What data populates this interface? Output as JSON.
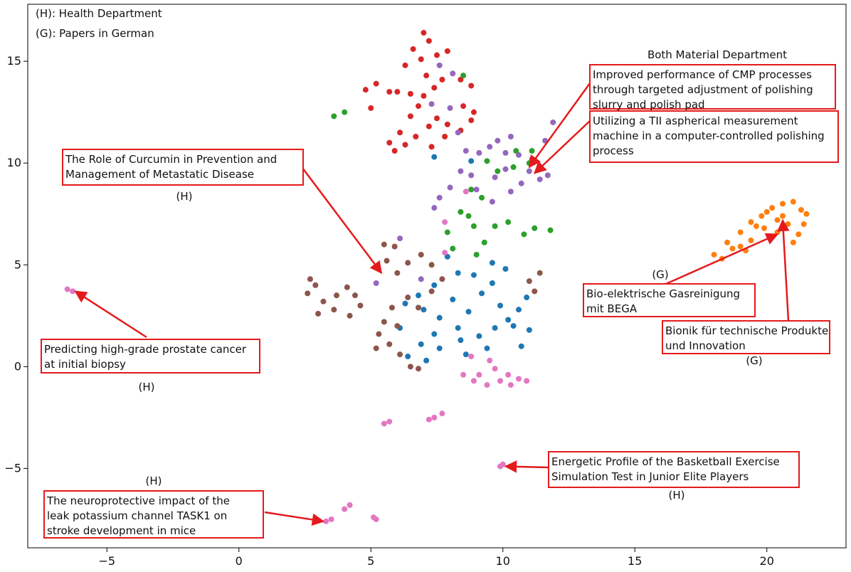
{
  "chart_data": {
    "type": "scatter",
    "title": "",
    "xlabel": "",
    "ylabel": "",
    "xlim": [
      -8,
      23
    ],
    "ylim": [
      -8.9,
      17.8
    ],
    "xticks": [
      -5,
      0,
      5,
      10,
      15,
      20
    ],
    "xtick_labels": [
      "−5",
      "0",
      "5",
      "10",
      "15",
      "20"
    ],
    "yticks": [
      -5,
      0,
      5,
      10,
      15
    ],
    "ytick_labels": [
      "−5",
      "0",
      "5",
      "10",
      "15"
    ],
    "grid": false,
    "legend_notes": [
      "(H): Health Department",
      "(G): Papers in German"
    ],
    "series": [
      {
        "color": "#d62728",
        "points": [
          [
            7.0,
            16.4
          ],
          [
            7.2,
            16.0
          ],
          [
            6.6,
            15.6
          ],
          [
            7.5,
            15.3
          ],
          [
            6.9,
            15.1
          ],
          [
            7.9,
            15.5
          ],
          [
            6.3,
            14.8
          ],
          [
            7.1,
            14.3
          ],
          [
            7.7,
            14.1
          ],
          [
            6.0,
            13.5
          ],
          [
            6.5,
            13.4
          ],
          [
            7.0,
            13.3
          ],
          [
            7.4,
            13.7
          ],
          [
            8.4,
            14.1
          ],
          [
            8.8,
            13.8
          ],
          [
            5.2,
            13.9
          ],
          [
            5.7,
            13.5
          ],
          [
            4.8,
            13.6
          ],
          [
            6.8,
            12.8
          ],
          [
            7.5,
            12.2
          ],
          [
            7.2,
            11.8
          ],
          [
            7.8,
            11.3
          ],
          [
            7.3,
            10.8
          ],
          [
            6.3,
            10.9
          ],
          [
            5.9,
            10.6
          ],
          [
            5.7,
            11.0
          ],
          [
            6.1,
            11.5
          ],
          [
            8.5,
            12.8
          ],
          [
            8.9,
            12.5
          ],
          [
            8.8,
            12.1
          ],
          [
            5.0,
            12.7
          ],
          [
            6.5,
            12.3
          ],
          [
            7.9,
            11.9
          ],
          [
            8.4,
            11.6
          ],
          [
            6.7,
            11.3
          ]
        ]
      },
      {
        "color": "#9467bd",
        "points": [
          [
            7.6,
            14.8
          ],
          [
            7.3,
            12.9
          ],
          [
            8.1,
            14.4
          ],
          [
            8.0,
            12.7
          ],
          [
            8.3,
            11.5
          ],
          [
            8.6,
            10.6
          ],
          [
            9.1,
            10.5
          ],
          [
            9.5,
            10.8
          ],
          [
            10.1,
            10.5
          ],
          [
            10.6,
            10.4
          ],
          [
            11.1,
            10.2
          ],
          [
            11.6,
            11.1
          ],
          [
            11.9,
            12.0
          ],
          [
            9.8,
            11.1
          ],
          [
            10.3,
            11.3
          ],
          [
            11.0,
            9.6
          ],
          [
            11.4,
            9.2
          ],
          [
            8.8,
            9.4
          ],
          [
            8.4,
            9.6
          ],
          [
            8.0,
            8.8
          ],
          [
            7.6,
            8.3
          ],
          [
            7.4,
            7.8
          ],
          [
            9.0,
            8.7
          ],
          [
            9.6,
            8.1
          ],
          [
            10.3,
            8.6
          ],
          [
            10.7,
            9.0
          ],
          [
            11.7,
            9.4
          ],
          [
            10.1,
            9.7
          ],
          [
            9.7,
            9.3
          ],
          [
            6.1,
            6.3
          ],
          [
            6.9,
            4.3
          ],
          [
            5.2,
            4.1
          ]
        ]
      },
      {
        "color": "#2ca02c",
        "points": [
          [
            3.6,
            12.3
          ],
          [
            4.0,
            12.5
          ],
          [
            8.5,
            14.3
          ],
          [
            9.4,
            10.1
          ],
          [
            9.8,
            9.6
          ],
          [
            10.4,
            9.8
          ],
          [
            11.0,
            10.0
          ],
          [
            11.1,
            10.6
          ],
          [
            8.8,
            8.7
          ],
          [
            9.2,
            8.3
          ],
          [
            8.4,
            7.6
          ],
          [
            8.9,
            6.9
          ],
          [
            9.3,
            6.1
          ],
          [
            9.7,
            6.9
          ],
          [
            10.2,
            7.1
          ],
          [
            11.2,
            6.8
          ],
          [
            11.8,
            6.7
          ],
          [
            10.8,
            6.5
          ],
          [
            9.0,
            5.5
          ],
          [
            8.7,
            7.4
          ],
          [
            7.9,
            6.6
          ],
          [
            8.1,
            5.8
          ],
          [
            10.5,
            10.6
          ]
        ]
      },
      {
        "color": "#1f77b4",
        "points": [
          [
            7.4,
            10.3
          ],
          [
            8.8,
            10.1
          ],
          [
            7.9,
            5.4
          ],
          [
            8.3,
            4.6
          ],
          [
            7.4,
            4.0
          ],
          [
            6.8,
            3.5
          ],
          [
            6.3,
            3.1
          ],
          [
            7.0,
            2.8
          ],
          [
            7.6,
            2.4
          ],
          [
            8.1,
            3.3
          ],
          [
            8.7,
            2.7
          ],
          [
            9.2,
            3.6
          ],
          [
            9.6,
            4.1
          ],
          [
            9.9,
            3.0
          ],
          [
            10.2,
            2.3
          ],
          [
            10.6,
            2.8
          ],
          [
            10.9,
            3.4
          ],
          [
            8.3,
            1.9
          ],
          [
            7.4,
            1.6
          ],
          [
            6.9,
            1.1
          ],
          [
            7.6,
            0.9
          ],
          [
            8.4,
            1.3
          ],
          [
            9.1,
            1.5
          ],
          [
            9.7,
            1.9
          ],
          [
            6.4,
            0.5
          ],
          [
            7.1,
            0.3
          ],
          [
            8.6,
            0.6
          ],
          [
            9.4,
            0.9
          ],
          [
            10.4,
            2.0
          ],
          [
            11.0,
            1.8
          ],
          [
            10.7,
            1.0
          ],
          [
            6.1,
            1.9
          ],
          [
            8.9,
            4.5
          ],
          [
            9.6,
            5.1
          ],
          [
            10.1,
            4.8
          ]
        ]
      },
      {
        "color": "#8c564b",
        "points": [
          [
            2.7,
            4.3
          ],
          [
            2.9,
            4.0
          ],
          [
            2.6,
            3.6
          ],
          [
            3.2,
            3.2
          ],
          [
            3.7,
            3.5
          ],
          [
            4.1,
            3.9
          ],
          [
            4.4,
            3.5
          ],
          [
            4.6,
            3.0
          ],
          [
            3.6,
            2.8
          ],
          [
            3.0,
            2.6
          ],
          [
            4.2,
            2.5
          ],
          [
            5.5,
            6.0
          ],
          [
            5.9,
            5.9
          ],
          [
            5.6,
            5.2
          ],
          [
            6.4,
            5.1
          ],
          [
            6.0,
            4.6
          ],
          [
            6.9,
            5.5
          ],
          [
            7.3,
            5.0
          ],
          [
            7.7,
            4.3
          ],
          [
            7.3,
            3.7
          ],
          [
            6.4,
            3.4
          ],
          [
            6.8,
            2.9
          ],
          [
            5.8,
            2.9
          ],
          [
            5.5,
            2.2
          ],
          [
            5.3,
            1.6
          ],
          [
            5.7,
            1.1
          ],
          [
            6.1,
            0.6
          ],
          [
            6.0,
            2.0
          ],
          [
            6.5,
            0.0
          ],
          [
            6.8,
            -0.1
          ],
          [
            11.0,
            4.2
          ],
          [
            11.4,
            4.6
          ],
          [
            11.2,
            3.7
          ],
          [
            5.2,
            0.9
          ]
        ]
      },
      {
        "color": "#ff7f0e",
        "points": [
          [
            18.0,
            5.5
          ],
          [
            18.5,
            6.1
          ],
          [
            19.0,
            6.6
          ],
          [
            19.4,
            7.1
          ],
          [
            19.8,
            7.4
          ],
          [
            20.2,
            7.8
          ],
          [
            20.6,
            8.0
          ],
          [
            21.0,
            8.1
          ],
          [
            21.3,
            7.7
          ],
          [
            21.5,
            7.5
          ],
          [
            20.4,
            7.2
          ],
          [
            19.9,
            6.8
          ],
          [
            19.4,
            6.2
          ],
          [
            19.0,
            5.9
          ],
          [
            20.8,
            7.0
          ],
          [
            21.2,
            6.5
          ],
          [
            21.0,
            6.1
          ],
          [
            20.4,
            6.6
          ],
          [
            18.7,
            5.8
          ],
          [
            19.6,
            6.9
          ],
          [
            20.0,
            7.6
          ],
          [
            21.4,
            7.0
          ],
          [
            18.3,
            5.3
          ],
          [
            19.2,
            5.7
          ],
          [
            20.6,
            7.4
          ]
        ]
      },
      {
        "color": "#e377c2",
        "points": [
          [
            -6.5,
            3.8
          ],
          [
            -6.3,
            3.7
          ],
          [
            8.6,
            8.6
          ],
          [
            7.8,
            7.1
          ],
          [
            7.8,
            5.6
          ],
          [
            8.5,
            -0.4
          ],
          [
            8.9,
            -0.7
          ],
          [
            9.4,
            -0.9
          ],
          [
            9.9,
            -0.7
          ],
          [
            10.3,
            -0.9
          ],
          [
            10.6,
            -0.6
          ],
          [
            9.1,
            -0.4
          ],
          [
            8.8,
            0.5
          ],
          [
            9.5,
            0.3
          ],
          [
            9.7,
            -0.1
          ],
          [
            10.2,
            -0.4
          ],
          [
            10.9,
            -0.7
          ],
          [
            7.7,
            -2.3
          ],
          [
            7.4,
            -2.5
          ],
          [
            7.2,
            -2.6
          ],
          [
            5.7,
            -2.7
          ],
          [
            5.5,
            -2.8
          ],
          [
            9.9,
            -4.9
          ],
          [
            10.0,
            -4.8
          ],
          [
            3.3,
            -7.6
          ],
          [
            3.5,
            -7.5
          ],
          [
            4.0,
            -7.0
          ],
          [
            4.2,
            -6.8
          ],
          [
            5.2,
            -7.5
          ],
          [
            5.1,
            -7.4
          ]
        ]
      }
    ],
    "annotations": [
      {
        "label": "Both Material Department",
        "text": [
          "Improved performance of CMP processes",
          "through targeted adjustment of polishing",
          "slurry and polish pad"
        ],
        "point": [
          11.0,
          9.8
        ]
      },
      {
        "label": "",
        "text": [
          "Utilizing a TII aspherical measurement",
          "machine in a computer-controlled polishing",
          "process"
        ],
        "point": [
          11.2,
          9.5
        ]
      },
      {
        "label": "(H)",
        "text": [
          "The Role of Curcumin in Prevention and",
          "Management of Metastatic Disease"
        ],
        "point": [
          5.4,
          4.6
        ]
      },
      {
        "label": "(H)",
        "text": [
          "Predicting high-grade prostate cancer",
          " at initial biopsy"
        ],
        "point": [
          -6.2,
          3.7
        ]
      },
      {
        "label": "(H)",
        "text": [
          "The neuroprotective impact of the",
          "leak potassium channel TASK1 on",
          "stroke development in mice"
        ],
        "point": [
          3.2,
          -7.6
        ]
      },
      {
        "label": "(G)",
        "text": [
          "Bio-elektrische Gasreinigung",
          "mit BEGA"
        ],
        "point": [
          20.4,
          6.5
        ]
      },
      {
        "label": "(G)",
        "text": [
          "Bionik für technische Produkte",
          "und Innovation"
        ],
        "point": [
          20.6,
          7.2
        ]
      },
      {
        "label": "(H)",
        "text": [
          "Energetic Profile of the Basketball Exercise",
          "Simulation Test in Junior Elite Players"
        ],
        "point": [
          10.1,
          -4.9
        ]
      }
    ]
  }
}
